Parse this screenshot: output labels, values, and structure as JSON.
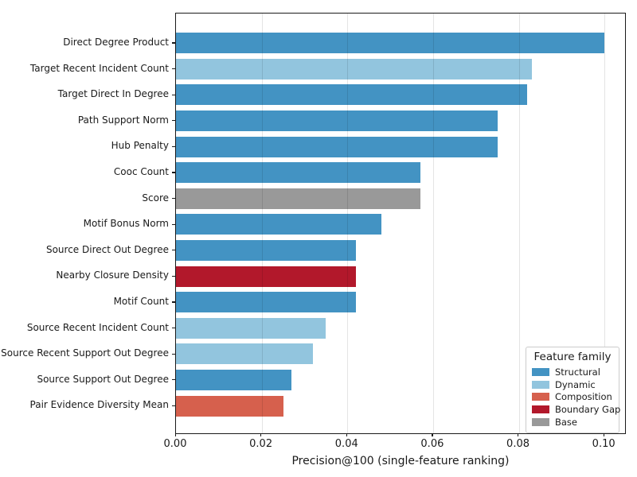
{
  "chart_data": {
    "type": "bar",
    "orientation": "horizontal",
    "title": "",
    "xlabel": "Precision@100 (single-feature ranking)",
    "ylabel": "",
    "xlim": [
      0,
      0.1048
    ],
    "grid": "vertical-only",
    "xticks": [
      {
        "value": 0.0,
        "label": "0.00"
      },
      {
        "value": 0.02,
        "label": "0.02"
      },
      {
        "value": 0.04,
        "label": "0.04"
      },
      {
        "value": 0.06,
        "label": "0.06"
      },
      {
        "value": 0.08,
        "label": "0.08"
      },
      {
        "value": 0.1,
        "label": "0.10"
      }
    ],
    "categories": [
      "Direct Degree Product",
      "Target Recent Incident Count",
      "Target Direct In Degree",
      "Path Support Norm",
      "Hub Penalty",
      "Cooc Count",
      "Score",
      "Motif Bonus Norm",
      "Source Direct Out Degree",
      "Nearby Closure Density",
      "Motif Count",
      "Source Recent Incident Count",
      "Source Recent Support Out Degree",
      "Source Support Out Degree",
      "Pair Evidence Diversity Mean"
    ],
    "values": [
      0.1,
      0.083,
      0.082,
      0.075,
      0.075,
      0.057,
      0.057,
      0.048,
      0.042,
      0.042,
      0.042,
      0.035,
      0.032,
      0.027,
      0.025
    ],
    "families": [
      "Structural",
      "Dynamic",
      "Structural",
      "Structural",
      "Structural",
      "Structural",
      "Base",
      "Structural",
      "Structural",
      "Boundary Gap",
      "Structural",
      "Dynamic",
      "Dynamic",
      "Structural",
      "Composition"
    ],
    "family_colors": {
      "Structural": "#4393c3",
      "Dynamic": "#92c5de",
      "Composition": "#d6604d",
      "Boundary Gap": "#b2182b",
      "Base": "#999999"
    },
    "legend": {
      "title": "Feature family",
      "position": "lower right",
      "entries": [
        {
          "label": "Structural",
          "color": "#4393c3"
        },
        {
          "label": "Dynamic",
          "color": "#92c5de"
        },
        {
          "label": "Composition",
          "color": "#d6604d"
        },
        {
          "label": "Boundary Gap",
          "color": "#b2182b"
        },
        {
          "label": "Base",
          "color": "#999999"
        }
      ]
    }
  }
}
